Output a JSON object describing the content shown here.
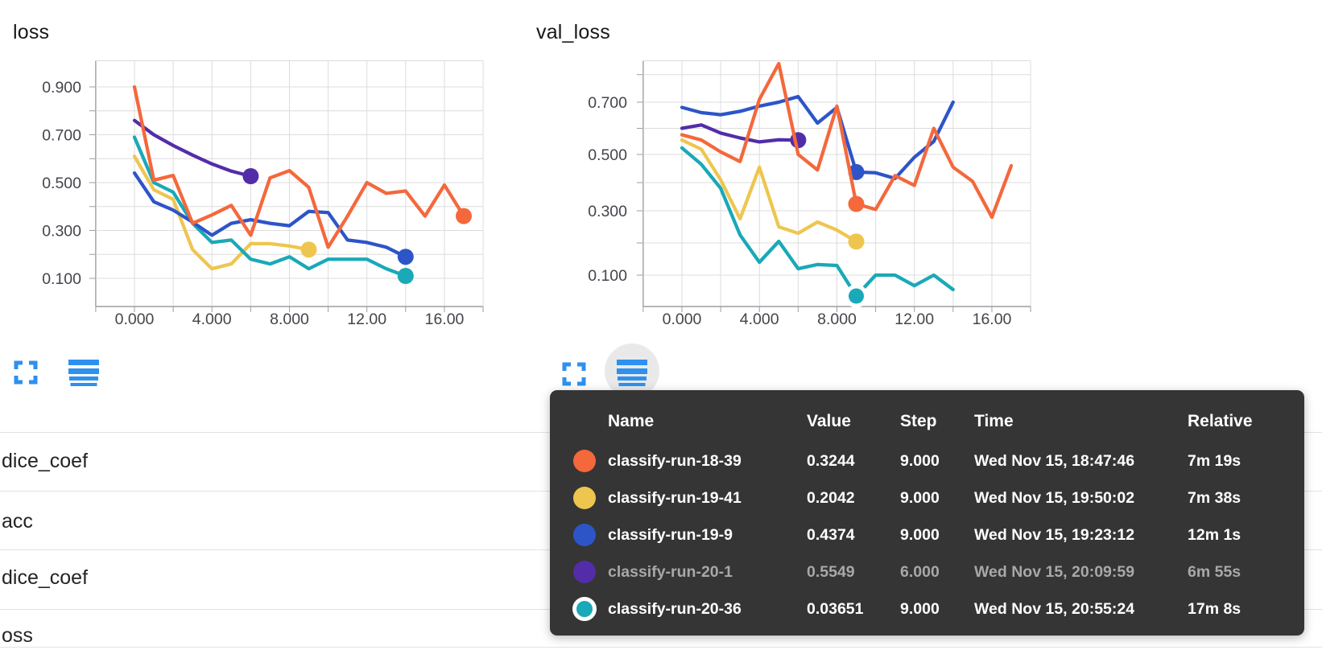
{
  "theme": {
    "icon_blue": "#2e90ef",
    "tooltip_bg": "#353535",
    "grid": "#dcdcdc",
    "axis": "#9e9e9e",
    "tick_text": "#44444c",
    "separator": "#e2e2e2",
    "dimmed_text": "#a8a8a8"
  },
  "chart_data": [
    {
      "type": "line",
      "title": "loss",
      "xlabel": "",
      "ylabel": "",
      "x_range": [
        -2,
        18
      ],
      "ylim": [
        0,
        1.0
      ],
      "grid": true,
      "legend_position": "tooltip-table",
      "x_tick_steps": [
        0,
        4,
        8,
        12,
        16
      ],
      "x_tick_labels": [
        "0.000",
        "4.000",
        "8.000",
        "12.00",
        "16.00"
      ],
      "y_tick_values": [
        0.9,
        0.7,
        0.5,
        0.3,
        0.1
      ],
      "y_tick_labels": [
        "0.900",
        "0.700",
        "0.500",
        "0.300",
        "0.100"
      ],
      "series": [
        {
          "name": "classify-run-18-39",
          "color": "#f4683c",
          "marker_step": 17,
          "ring": false,
          "values": [
            0.9,
            0.51,
            0.53,
            0.33,
            0.365,
            0.405,
            0.28,
            0.52,
            0.55,
            0.48,
            0.23,
            0.36,
            0.5,
            0.455,
            0.465,
            0.36,
            0.49,
            0.36
          ]
        },
        {
          "name": "classify-run-19-41",
          "color": "#eec64f",
          "marker_step": 9,
          "ring": false,
          "values": [
            0.61,
            0.47,
            0.43,
            0.22,
            0.14,
            0.16,
            0.245,
            0.245,
            0.235,
            0.22
          ]
        },
        {
          "name": "classify-run-19-9",
          "color": "#2d55c8",
          "marker_step": 14,
          "ring": false,
          "values": [
            0.54,
            0.42,
            0.385,
            0.335,
            0.28,
            0.33,
            0.345,
            0.33,
            0.32,
            0.38,
            0.375,
            0.26,
            0.25,
            0.23,
            0.19
          ]
        },
        {
          "name": "classify-run-20-1",
          "color": "#532da8",
          "marker_step": 6,
          "ring": false,
          "values": [
            0.76,
            0.7,
            0.655,
            0.615,
            0.578,
            0.548,
            0.527
          ]
        },
        {
          "name": "classify-run-20-36",
          "color": "#19a9b8",
          "marker_step": 14,
          "ring": false,
          "values": [
            0.69,
            0.5,
            0.46,
            0.33,
            0.25,
            0.26,
            0.18,
            0.16,
            0.19,
            0.14,
            0.18,
            0.18,
            0.18,
            0.14,
            0.11
          ]
        }
      ]
    },
    {
      "type": "line",
      "title": "val_loss",
      "xlabel": "",
      "ylabel": "",
      "x_range": [
        -2,
        18
      ],
      "ylim": [
        0,
        0.87
      ],
      "grid": true,
      "legend_position": "tooltip-table",
      "x_tick_steps": [
        0,
        4,
        8,
        12,
        16
      ],
      "x_tick_labels": [
        "0.000",
        "4.000",
        "8.000",
        "12.00",
        "16.00"
      ],
      "y_tick_values": [
        0.7,
        0.5,
        0.3,
        0.1
      ],
      "y_tick_labels": [
        "0.700",
        "0.500",
        "0.300",
        "0.100"
      ],
      "series": [
        {
          "name": "classify-run-18-39",
          "color": "#f4683c",
          "marker_step": 9,
          "ring": false,
          "values": [
            0.575,
            0.555,
            0.51,
            0.475,
            0.71,
            0.84,
            0.5,
            0.445,
            0.685,
            0.3244,
            0.305,
            0.425,
            0.39,
            0.6,
            0.455,
            0.405,
            0.28,
            0.46
          ]
        },
        {
          "name": "classify-run-19-41",
          "color": "#eec64f",
          "marker_step": 9,
          "ring": false,
          "values": [
            0.555,
            0.52,
            0.41,
            0.275,
            0.455,
            0.25,
            0.23,
            0.265,
            0.24,
            0.2042
          ]
        },
        {
          "name": "classify-run-19-9",
          "color": "#2d55c8",
          "marker_step": 9,
          "ring": false,
          "values": [
            0.68,
            0.66,
            0.652,
            0.665,
            0.685,
            0.7,
            0.72,
            0.62,
            0.68,
            0.4374,
            0.435,
            0.415,
            0.49,
            0.55,
            0.7
          ]
        },
        {
          "name": "classify-run-20-1",
          "color": "#532da8",
          "marker_step": 6,
          "ring": false,
          "values": [
            0.6,
            0.613,
            0.582,
            0.563,
            0.548,
            0.556,
            0.5549
          ]
        },
        {
          "name": "classify-run-20-36",
          "color": "#19a9b8",
          "marker_step": 9,
          "ring": true,
          "values": [
            0.525,
            0.465,
            0.38,
            0.225,
            0.14,
            0.205,
            0.12,
            0.133,
            0.13,
            0.03651,
            0.1,
            0.1,
            0.068,
            0.1,
            0.056
          ]
        }
      ]
    }
  ],
  "toolbar": {
    "fullscreen_icon": "fullscreen-expand-icon",
    "legend_icon": "legend-lines-icon",
    "legend_active_chart": "val_loss"
  },
  "tooltip": {
    "columns": [
      "Name",
      "Value",
      "Step",
      "Time",
      "Relative"
    ],
    "rows": [
      {
        "name": "classify-run-18-39",
        "color": "#f4683c",
        "value": "0.3244",
        "step": "9.000",
        "time": "Wed Nov 15, 18:47:46",
        "relative": "7m 19s",
        "dimmed": false,
        "ring": false
      },
      {
        "name": "classify-run-19-41",
        "color": "#eec64f",
        "value": "0.2042",
        "step": "9.000",
        "time": "Wed Nov 15, 19:50:02",
        "relative": "7m 38s",
        "dimmed": false,
        "ring": false
      },
      {
        "name": "classify-run-19-9",
        "color": "#2d55c8",
        "value": "0.4374",
        "step": "9.000",
        "time": "Wed Nov 15, 19:23:12",
        "relative": "12m 1s",
        "dimmed": false,
        "ring": false
      },
      {
        "name": "classify-run-20-1",
        "color": "#532da8",
        "value": "0.5549",
        "step": "6.000",
        "time": "Wed Nov 15, 20:09:59",
        "relative": "6m 55s",
        "dimmed": true,
        "ring": false
      },
      {
        "name": "classify-run-20-36",
        "color": "#19a9b8",
        "value": "0.03651",
        "step": "9.000",
        "time": "Wed Nov 15, 20:55:24",
        "relative": "17m 8s",
        "dimmed": false,
        "ring": true
      }
    ]
  },
  "metric_list": {
    "items": [
      "dice_coef",
      "acc",
      "dice_coef",
      "oss"
    ]
  }
}
